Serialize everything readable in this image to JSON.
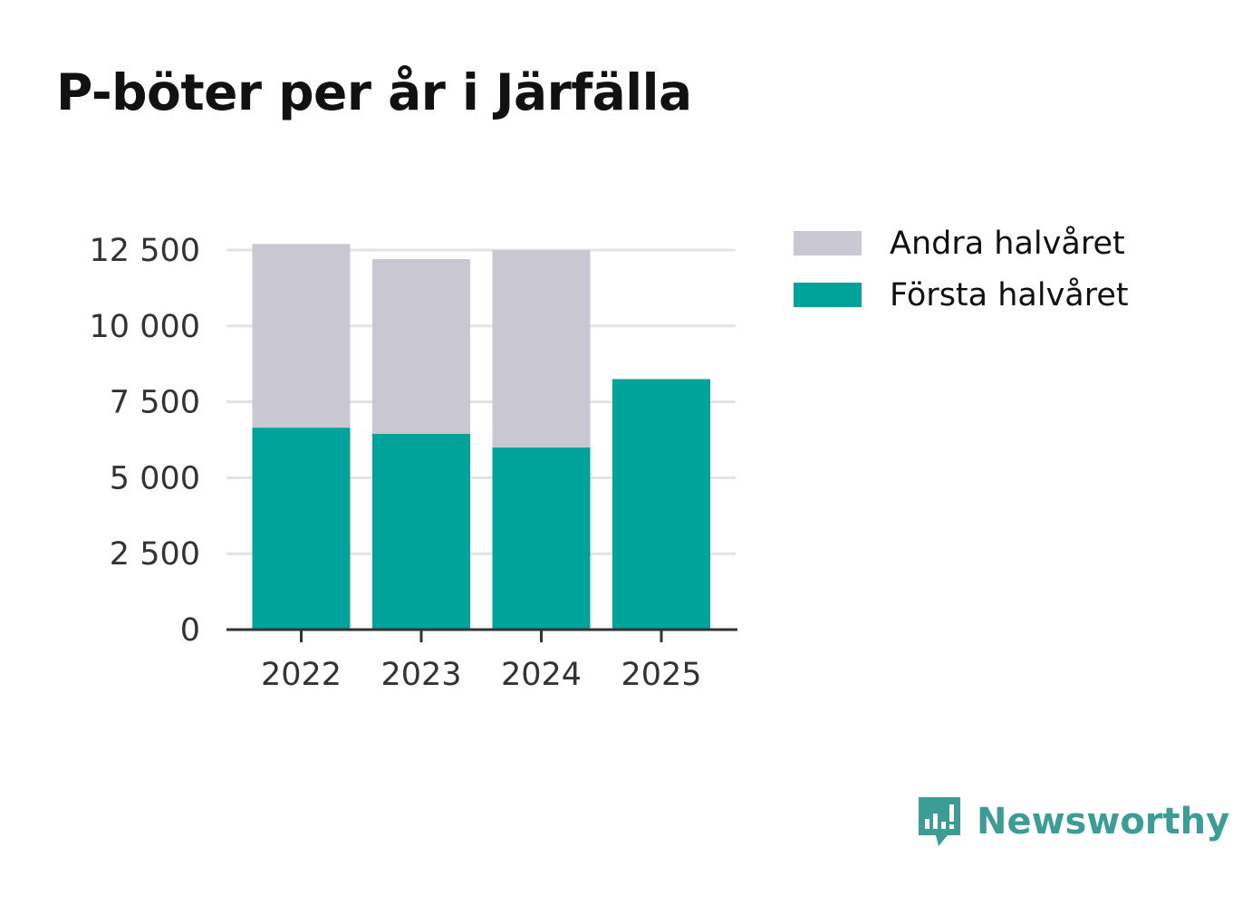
{
  "title": "P-böter per år i Järfälla",
  "colors": {
    "first_half": "#00a39a",
    "second_half": "#c8c7d2",
    "grid": "#e3e3e3",
    "axis": "#333333",
    "brand": "#3d9c95"
  },
  "chart_data": {
    "type": "bar",
    "stacked": true,
    "title": "P-böter per år i Järfälla",
    "categories": [
      "2022",
      "2023",
      "2024",
      "2025"
    ],
    "series": [
      {
        "name": "Första halvåret",
        "values": [
          6650,
          6450,
          6000,
          8250
        ]
      },
      {
        "name": "Andra halvåret",
        "values": [
          6050,
          5750,
          6500,
          0
        ]
      }
    ],
    "yticks": [
      0,
      2500,
      5000,
      7500,
      10000,
      12500
    ],
    "ytick_labels": [
      "0",
      "2 500",
      "5 000",
      "7 500",
      "10 000",
      "12 500"
    ],
    "ylim": [
      0,
      12500
    ],
    "xlabel": "",
    "ylabel": "",
    "legend_position": "right"
  },
  "legend": [
    {
      "label": "Andra halvåret",
      "color": "#c8c7d2"
    },
    {
      "label": "Första halvåret",
      "color": "#00a39a"
    }
  ],
  "brand": {
    "name": "Newsworthy",
    "icon": "newsworthy-logo-icon"
  }
}
